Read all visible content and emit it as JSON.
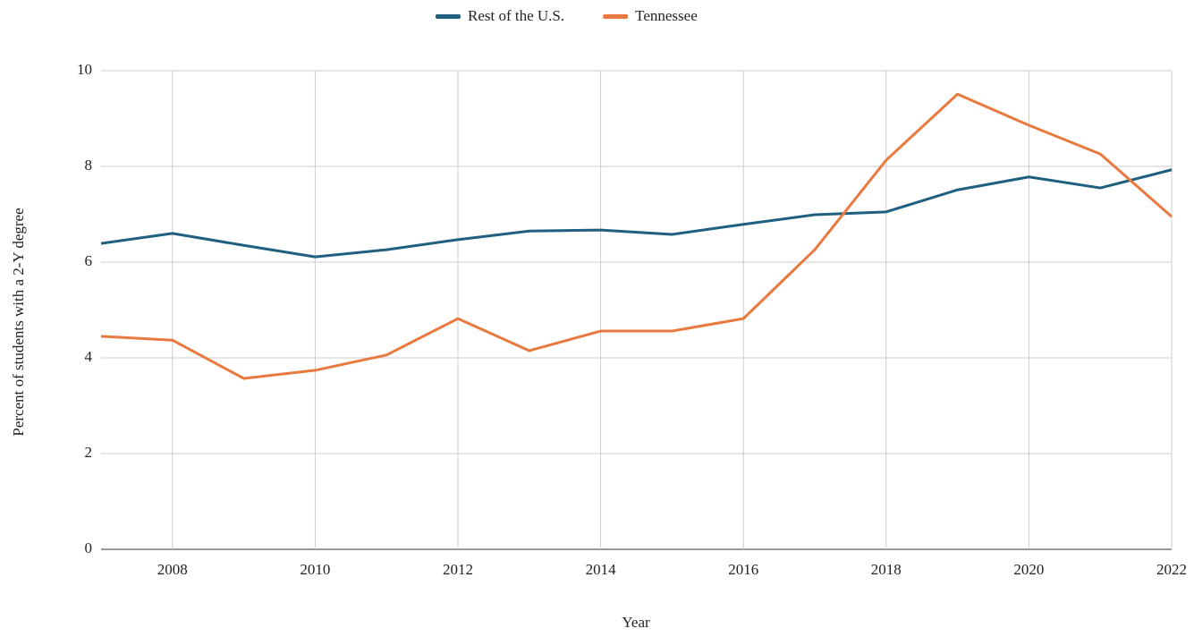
{
  "chart_data": {
    "type": "line",
    "x": [
      2007,
      2008,
      2009,
      2010,
      2011,
      2012,
      2013,
      2014,
      2015,
      2016,
      2017,
      2018,
      2019,
      2020,
      2021,
      2022
    ],
    "series": [
      {
        "name": "Rest of the U.S.",
        "color": "#1f5f80",
        "values": [
          6.39,
          6.6,
          6.35,
          6.11,
          6.26,
          6.47,
          6.65,
          6.67,
          6.58,
          6.79,
          6.99,
          7.05,
          7.51,
          7.78,
          7.55,
          7.93
        ]
      },
      {
        "name": "Tennessee",
        "color": "#e8793f",
        "values": [
          4.45,
          4.37,
          3.57,
          3.74,
          4.06,
          4.82,
          4.15,
          4.56,
          4.56,
          4.82,
          6.26,
          8.13,
          9.51,
          8.86,
          8.26,
          6.95
        ]
      }
    ],
    "xlabel": "Year",
    "ylabel": "Percent of students with a 2-Y degree",
    "xlim": [
      2007,
      2022
    ],
    "xticks": [
      2008,
      2010,
      2012,
      2014,
      2016,
      2018,
      2020,
      2022
    ],
    "ylim": [
      0,
      10
    ],
    "yticks": [
      0,
      2,
      4,
      6,
      8,
      10
    ],
    "grid": true,
    "legend": "top"
  }
}
